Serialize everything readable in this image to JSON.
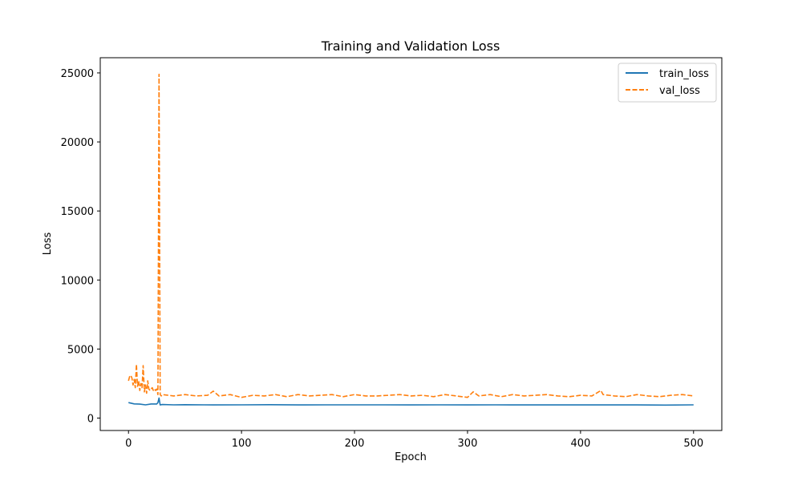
{
  "chart_data": {
    "type": "line",
    "title": "Training and Validation Loss",
    "xlabel": "Epoch",
    "ylabel": "Loss",
    "xlim": [
      -25,
      525
    ],
    "ylim": [
      -900,
      26100
    ],
    "xticks": [
      0,
      100,
      200,
      300,
      400,
      500
    ],
    "yticks": [
      0,
      5000,
      10000,
      15000,
      20000,
      25000
    ],
    "grid": false,
    "legend_position": "top-right",
    "series": [
      {
        "name": "train_loss",
        "color": "#1f77b4",
        "style": "solid",
        "x": [
          0,
          5,
          10,
          15,
          20,
          25,
          26,
          27,
          28,
          30,
          40,
          50,
          75,
          100,
          125,
          150,
          175,
          200,
          225,
          250,
          275,
          300,
          325,
          350,
          375,
          400,
          425,
          450,
          475,
          500
        ],
        "values": [
          1120,
          1030,
          1010,
          960,
          1020,
          1020,
          1120,
          1450,
          950,
          980,
          960,
          970,
          950,
          960,
          970,
          950,
          960,
          960,
          960,
          950,
          960,
          950,
          960,
          950,
          950,
          950,
          950,
          950,
          940,
          960
        ]
      },
      {
        "name": "val_loss",
        "color": "#ff7f0e",
        "style": "dashed",
        "x": [
          0,
          1,
          2,
          3,
          4,
          5,
          6,
          7,
          8,
          9,
          10,
          11,
          12,
          13,
          14,
          15,
          16,
          17,
          18,
          19,
          20,
          21,
          22,
          23,
          24,
          25,
          26,
          27,
          28,
          29,
          30,
          40,
          50,
          60,
          70,
          75,
          80,
          90,
          100,
          110,
          120,
          130,
          140,
          150,
          160,
          170,
          180,
          190,
          200,
          210,
          220,
          230,
          240,
          250,
          260,
          270,
          280,
          290,
          300,
          305,
          310,
          320,
          330,
          340,
          350,
          360,
          370,
          380,
          390,
          400,
          410,
          418,
          420,
          430,
          440,
          450,
          460,
          470,
          480,
          490,
          500
        ],
        "values": [
          2700,
          3000,
          3100,
          2900,
          2400,
          2800,
          2200,
          3900,
          2300,
          2700,
          2000,
          2500,
          2200,
          3800,
          1900,
          2400,
          1800,
          2700,
          2100,
          2000,
          2100,
          2200,
          2000,
          2100,
          2000,
          2100,
          1700,
          24900,
          1700,
          1600,
          1700,
          1600,
          1700,
          1600,
          1650,
          1950,
          1600,
          1700,
          1500,
          1650,
          1600,
          1700,
          1550,
          1700,
          1600,
          1650,
          1700,
          1550,
          1700,
          1600,
          1600,
          1650,
          1700,
          1600,
          1650,
          1550,
          1700,
          1600,
          1500,
          1900,
          1600,
          1700,
          1550,
          1700,
          1600,
          1650,
          1700,
          1600,
          1550,
          1650,
          1600,
          2000,
          1700,
          1600,
          1550,
          1700,
          1600,
          1550,
          1650,
          1700,
          1600
        ]
      }
    ]
  }
}
